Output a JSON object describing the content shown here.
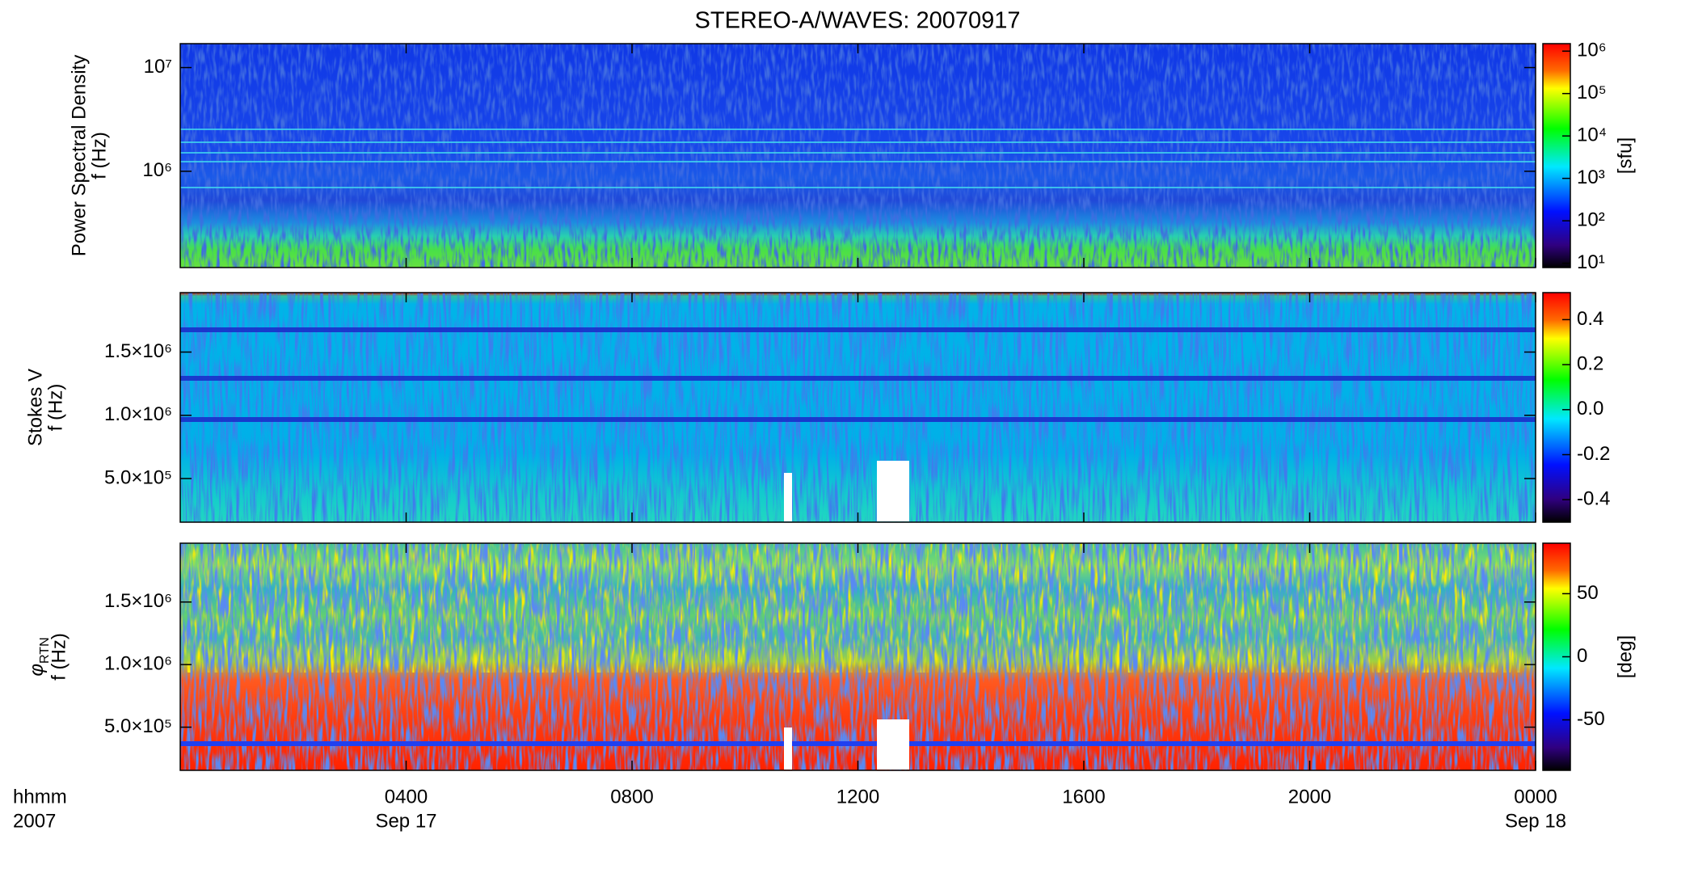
{
  "chart_data": {
    "type": "spectrogram",
    "title": "STEREO-A/WAVES: 20070917",
    "xlabel": [
      "hhmm",
      "2007"
    ],
    "xlim": [
      0,
      24
    ],
    "xticks": [
      {
        "value": 4,
        "label": "0400"
      },
      {
        "value": 8,
        "label": "0800"
      },
      {
        "value": 12,
        "label": "1200"
      },
      {
        "value": 16,
        "label": "1600"
      },
      {
        "value": 20,
        "label": "2000"
      },
      {
        "value": 24,
        "label": "0000"
      }
    ],
    "date_ticks": [
      {
        "value": 4,
        "label": "Sep 17"
      },
      {
        "value": 24,
        "label": "Sep 18"
      }
    ],
    "panels": [
      {
        "ylabel": [
          "Power Spectral Density",
          "f (Hz)"
        ],
        "yscale": "log",
        "ylim": [
          118000,
          17000000
        ],
        "yticks": [
          {
            "value": 1000000,
            "label": "10⁶"
          },
          {
            "value": 10000000,
            "label": "10⁷"
          }
        ],
        "colorbar": {
          "scale": "log",
          "lim": [
            7.9,
            1500000
          ],
          "ticks": [
            {
              "value": 10,
              "label": "10¹"
            },
            {
              "value": 100,
              "label": "10²"
            },
            {
              "value": 1000,
              "label": "10³"
            },
            {
              "value": 10000,
              "label": "10⁴"
            },
            {
              "value": 100000,
              "label": "10⁵"
            },
            {
              "value": 1000000,
              "label": "10⁶"
            }
          ],
          "label": "[sfu]"
        }
      },
      {
        "ylabel": [
          "Stokes V",
          "f (Hz)"
        ],
        "yscale": "linear",
        "ylim": [
          155000,
          1970000
        ],
        "yticks": [
          {
            "value": 500000,
            "label": "5.0×10⁵"
          },
          {
            "value": 1000000,
            "label": "1.0×10⁶"
          },
          {
            "value": 1500000,
            "label": "1.5×10⁶"
          }
        ],
        "colorbar": {
          "scale": "linear",
          "lim": [
            -0.5,
            0.52
          ],
          "ticks": [
            -0.4,
            -0.2,
            {
              "value": 0,
              "label": "0.0"
            },
            0.2,
            0.4
          ]
        }
      },
      {
        "ylabel": [
          {
            "text": "φ",
            "sub": "RTN"
          },
          "f (Hz)"
        ],
        "yscale": "linear",
        "ylim": [
          155000,
          1970000
        ],
        "yticks": [
          {
            "value": 500000,
            "label": "5.0×10⁵"
          },
          {
            "value": 1000000,
            "label": "1.0×10⁶"
          },
          {
            "value": 1500000,
            "label": "1.5×10⁶"
          }
        ],
        "colorbar": {
          "scale": "linear",
          "lim": [
            -90,
            90
          ],
          "ticks": [
            -50,
            0,
            50
          ],
          "label": "[deg]"
        }
      }
    ]
  }
}
